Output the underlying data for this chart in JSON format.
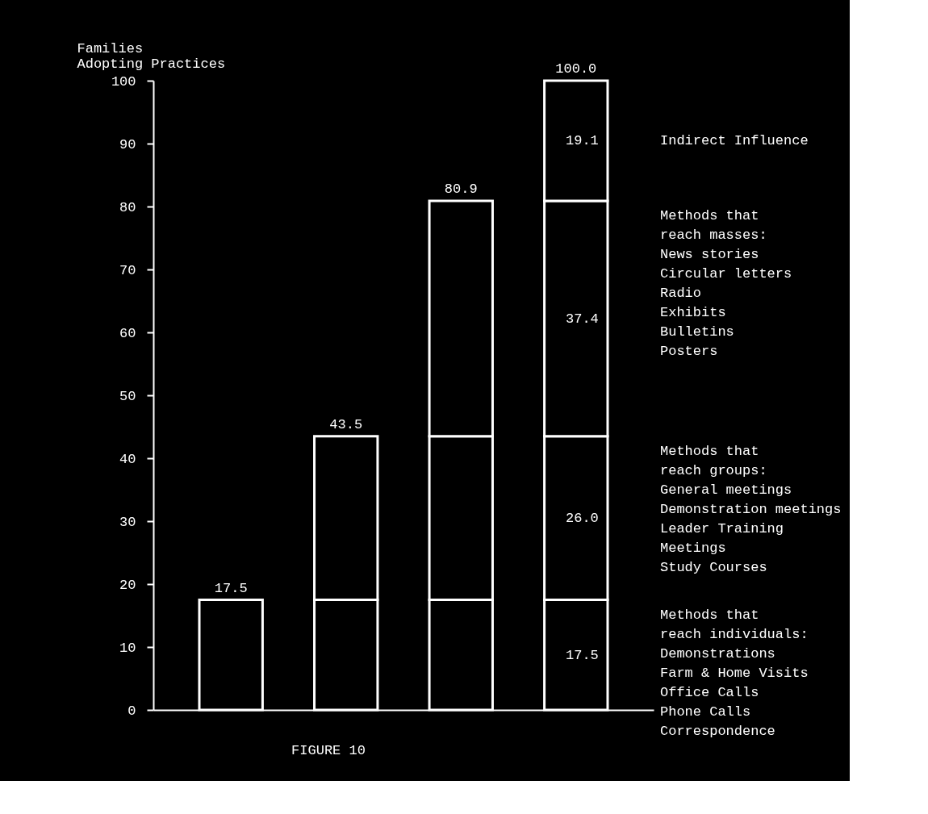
{
  "chart_data": {
    "type": "bar",
    "stacked": true,
    "categories": [
      null,
      null,
      null,
      null
    ],
    "ylabel": "Families\nAdopting Practices",
    "ylim": [
      0,
      100
    ],
    "yticks": [
      0,
      10,
      20,
      30,
      40,
      50,
      60,
      70,
      80,
      90,
      100
    ],
    "tick_labels": "y",
    "grid": false,
    "series": [
      {
        "name": "Methods that\nreach individuals:\nDemonstrations\nFarm & Home Visits\nOffice Calls\nPhone Calls\nCorrespondence",
        "color": "#000000",
        "values": [
          17.5,
          17.5,
          17.5,
          17.5
        ],
        "value_labels": [
          null,
          null,
          null,
          "17.5"
        ]
      },
      {
        "name": "Methods that\nreach groups:\nGeneral meetings\nDemonstration meetings\nLeader Training\n        Meetings\nStudy Courses",
        "color": "#000000",
        "values": [
          null,
          26.0,
          26.0,
          26.0
        ],
        "value_labels": [
          null,
          null,
          null,
          "26.0"
        ]
      },
      {
        "name": "Methods that\nreach masses:\nNews stories\nCircular letters\nRadio\nExhibits\nBulletins\nPosters",
        "color": "#000000",
        "values": [
          null,
          null,
          37.4,
          37.4
        ],
        "value_labels": [
          null,
          null,
          null,
          "37.4"
        ]
      },
      {
        "name": "Indirect Influence",
        "color": "#000000",
        "values": [
          null,
          null,
          null,
          19.1
        ],
        "value_labels": [
          null,
          null,
          null,
          "19.1"
        ]
      }
    ],
    "totals": [
      "17.5",
      "43.5",
      "80.9",
      "100.0"
    ],
    "annotations": [
      "FIGURE 10"
    ]
  }
}
